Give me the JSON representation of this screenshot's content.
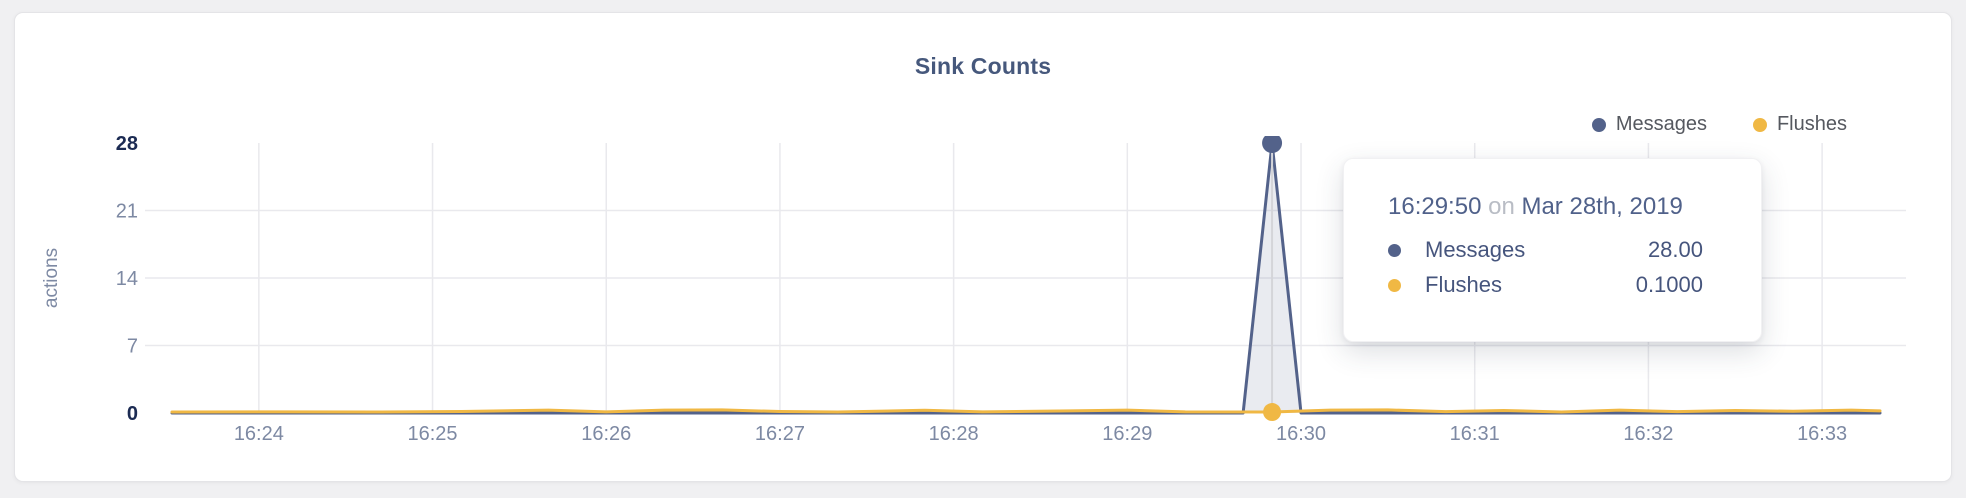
{
  "page": {
    "background": "#f0f0f2",
    "card_background": "#ffffff"
  },
  "tooltip": {
    "time": "16:29:50",
    "preposition": "on",
    "date": "Mar 28th, 2019",
    "rows": [
      {
        "series": "Messages",
        "value": "28.00"
      },
      {
        "series": "Flushes",
        "value": "0.1000"
      }
    ]
  },
  "chart_data": {
    "type": "line",
    "title": "Sink Counts",
    "xlabel": "",
    "ylabel": "actions",
    "ylim": [
      0,
      28
    ],
    "y_ticks": [
      0,
      7,
      14,
      21,
      28
    ],
    "x_tick_labels": [
      "16:24",
      "16:25",
      "16:26",
      "16:27",
      "16:28",
      "16:29",
      "16:30",
      "16:31",
      "16:32",
      "16:33"
    ],
    "x_domain": [
      "16:23:30",
      "16:33:20"
    ],
    "grid": true,
    "legend": [
      "Messages",
      "Flushes"
    ],
    "legend_position": "top-right",
    "colors": {
      "messages": "#53628a",
      "flushes": "#f0b844",
      "area_fill": "rgba(83,98,138,0.13)",
      "grid": "#e9e9ed",
      "crosshair": "#d4d5d9",
      "tick_label": "#7d89a3",
      "tick_label_emphasis": "#1c2b53",
      "title_text": "#46587c",
      "legend_text": "#55585f"
    },
    "highlight": {
      "time": "16:29:50",
      "date": "Mar 28th, 2019",
      "values": {
        "Messages": 28.0,
        "Flushes": 0.1
      }
    },
    "series": [
      {
        "name": "Messages",
        "color": "#53628a",
        "area": true,
        "points": [
          [
            "16:23:30",
            0
          ],
          [
            "16:29:40",
            0
          ],
          [
            "16:29:50",
            28
          ],
          [
            "16:30:00",
            0
          ],
          [
            "16:33:20",
            0
          ]
        ]
      },
      {
        "name": "Flushes",
        "color": "#f0b844",
        "area": false,
        "points": [
          [
            "16:23:30",
            0.1
          ],
          [
            "16:24:10",
            0.12
          ],
          [
            "16:24:40",
            0.1
          ],
          [
            "16:25:10",
            0.15
          ],
          [
            "16:25:40",
            0.3
          ],
          [
            "16:26:00",
            0.12
          ],
          [
            "16:26:20",
            0.3
          ],
          [
            "16:26:40",
            0.32
          ],
          [
            "16:27:00",
            0.15
          ],
          [
            "16:27:20",
            0.1
          ],
          [
            "16:27:50",
            0.28
          ],
          [
            "16:28:10",
            0.12
          ],
          [
            "16:28:40",
            0.22
          ],
          [
            "16:29:00",
            0.3
          ],
          [
            "16:29:20",
            0.12
          ],
          [
            "16:29:50",
            0.1
          ],
          [
            "16:30:10",
            0.3
          ],
          [
            "16:30:30",
            0.32
          ],
          [
            "16:30:50",
            0.14
          ],
          [
            "16:31:10",
            0.26
          ],
          [
            "16:31:30",
            0.1
          ],
          [
            "16:31:50",
            0.3
          ],
          [
            "16:32:10",
            0.14
          ],
          [
            "16:32:30",
            0.26
          ],
          [
            "16:32:50",
            0.18
          ],
          [
            "16:33:10",
            0.3
          ],
          [
            "16:33:20",
            0.22
          ]
        ]
      }
    ]
  }
}
